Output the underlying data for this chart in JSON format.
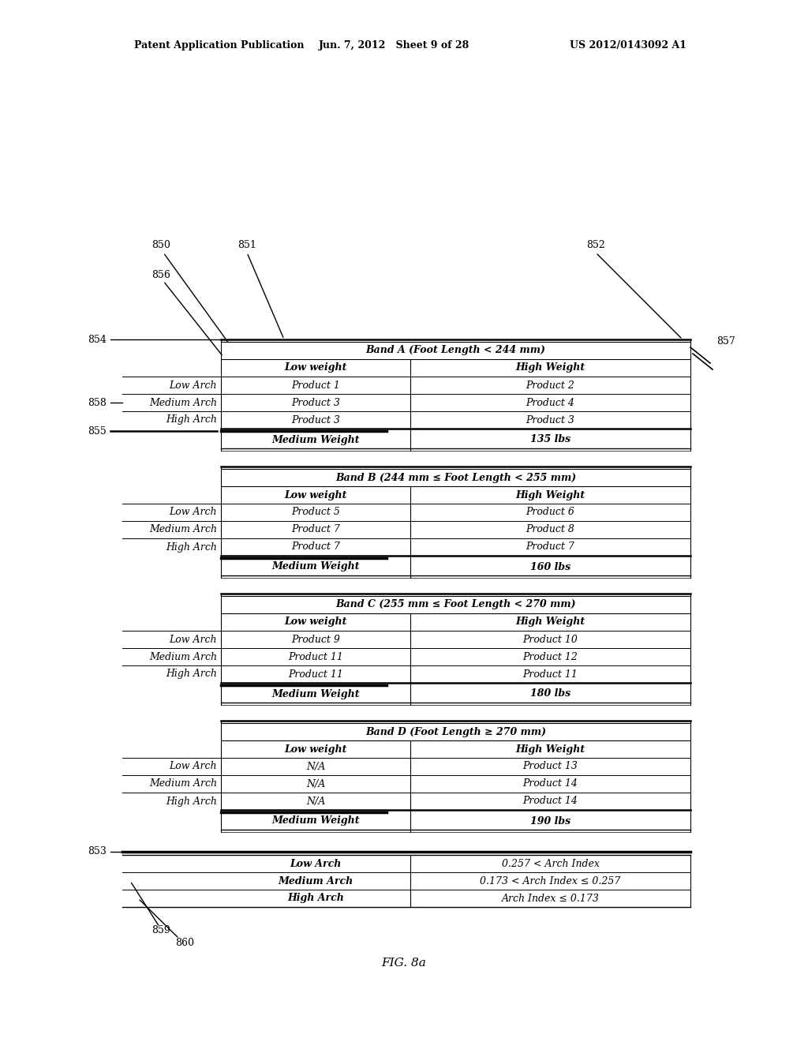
{
  "title_left": "Patent Application Publication",
  "title_mid": "Jun. 7, 2012   Sheet 9 of 28",
  "title_right": "US 2012/0143092 A1",
  "fig_label": "FIG. 8a",
  "background_color": "#ffffff",
  "bands": [
    {
      "title": "Band A (Foot Length < 244 mm)",
      "header_low": "Low weight",
      "header_high": "High Weight",
      "rows": [
        [
          "Low Arch",
          "Product 1",
          "Product 2"
        ],
        [
          "Medium Arch",
          "Product 3",
          "Product 4"
        ],
        [
          "High Arch",
          "Product 3",
          "Product 3"
        ]
      ],
      "footer": [
        "Medium Weight",
        "135 lbs"
      ]
    },
    {
      "title": "Band B (244 mm ≤ Foot Length < 255 mm)",
      "header_low": "Low weight",
      "header_high": "High Weight",
      "rows": [
        [
          "Low Arch",
          "Product 5",
          "Product 6"
        ],
        [
          "Medium Arch",
          "Product 7",
          "Product 8"
        ],
        [
          "High Arch",
          "Product 7",
          "Product 7"
        ]
      ],
      "footer": [
        "Medium Weight",
        "160 lbs"
      ]
    },
    {
      "title": "Band C (255 mm ≤ Foot Length < 270 mm)",
      "header_low": "Low weight",
      "header_high": "High Weight",
      "rows": [
        [
          "Low Arch",
          "Product 9",
          "Product 10"
        ],
        [
          "Medium Arch",
          "Product 11",
          "Product 12"
        ],
        [
          "High Arch",
          "Product 11",
          "Product 11"
        ]
      ],
      "footer": [
        "Medium Weight",
        "180 lbs"
      ]
    },
    {
      "title": "Band D (Foot Length ≥ 270 mm)",
      "header_low": "Low weight",
      "header_high": "High Weight",
      "rows": [
        [
          "Low Arch",
          "N/A",
          "Product 13"
        ],
        [
          "Medium Arch",
          "N/A",
          "Product 14"
        ],
        [
          "High Arch",
          "N/A",
          "Product 14"
        ]
      ],
      "footer": [
        "Medium Weight",
        "190 lbs"
      ]
    }
  ],
  "legend_rows": [
    [
      "Low Arch",
      "0.257 < Arch Index"
    ],
    [
      "Medium Arch",
      "0.173 < Arch Index ≤ 0.257"
    ],
    [
      "High Arch",
      "Arch Index ≤ 0.173"
    ]
  ]
}
